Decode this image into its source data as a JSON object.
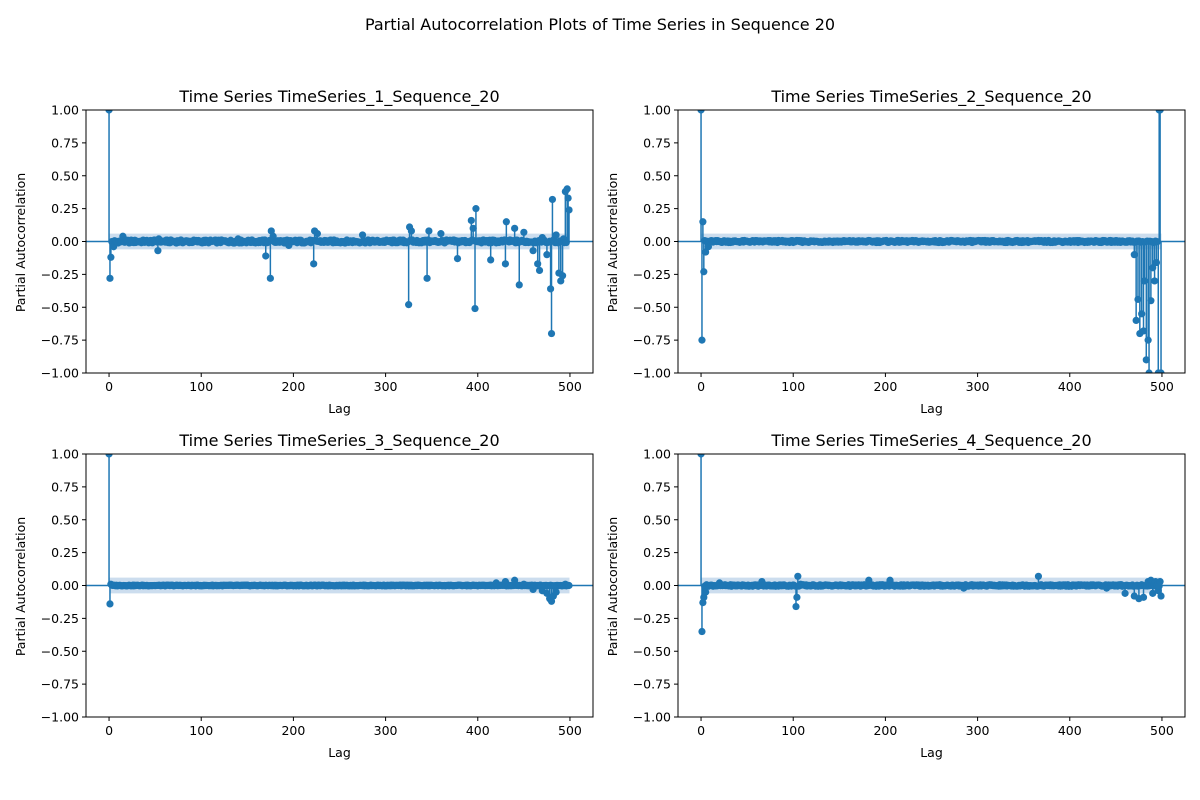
{
  "figure": {
    "title": "Partial Autocorrelation Plots of Time Series in Sequence 20"
  },
  "colors": {
    "series": "#1f77b4",
    "confidence_band": "#c6d9ec",
    "axes": "#000000"
  },
  "chart_data": [
    {
      "type": "stem",
      "title": "Time Series TimeSeries_1_Sequence_20",
      "xlabel": "Lag",
      "ylabel": "Partial Autocorrelation",
      "xlim": [
        -25,
        525
      ],
      "ylim": [
        -1.0,
        1.0
      ],
      "xticks": [
        "0",
        "100",
        "200",
        "300",
        "400",
        "500"
      ],
      "yticks": [
        "−1.00",
        "−0.75",
        "−0.50",
        "−0.25",
        "0.00",
        "0.25",
        "0.50",
        "0.75",
        "1.00"
      ],
      "confidence_band": 0.06,
      "baseline": 0,
      "background_amplitude": 0.012,
      "spikes": [
        [
          0,
          1.0
        ],
        [
          1,
          -0.28
        ],
        [
          2,
          -0.12
        ],
        [
          5,
          -0.04
        ],
        [
          15,
          0.04
        ],
        [
          53,
          -0.07
        ],
        [
          54,
          0.02
        ],
        [
          140,
          0.02
        ],
        [
          170,
          -0.11
        ],
        [
          175,
          -0.28
        ],
        [
          176,
          0.08
        ],
        [
          178,
          0.04
        ],
        [
          195,
          -0.03
        ],
        [
          222,
          -0.17
        ],
        [
          223,
          0.08
        ],
        [
          226,
          0.06
        ],
        [
          275,
          0.05
        ],
        [
          325,
          -0.48
        ],
        [
          326,
          0.11
        ],
        [
          328,
          0.08
        ],
        [
          345,
          -0.28
        ],
        [
          347,
          0.08
        ],
        [
          360,
          0.06
        ],
        [
          378,
          -0.13
        ],
        [
          393,
          0.16
        ],
        [
          395,
          0.1
        ],
        [
          397,
          -0.51
        ],
        [
          398,
          0.25
        ],
        [
          414,
          -0.14
        ],
        [
          430,
          -0.17
        ],
        [
          431,
          0.15
        ],
        [
          440,
          0.1
        ],
        [
          445,
          -0.33
        ],
        [
          450,
          0.07
        ],
        [
          460,
          -0.07
        ],
        [
          465,
          -0.17
        ],
        [
          467,
          -0.22
        ],
        [
          470,
          0.03
        ],
        [
          475,
          -0.1
        ],
        [
          479,
          -0.36
        ],
        [
          480,
          -0.7
        ],
        [
          481,
          0.32
        ],
        [
          485,
          0.05
        ],
        [
          488,
          -0.24
        ],
        [
          490,
          -0.3
        ],
        [
          492,
          -0.26
        ],
        [
          493,
          0.02
        ],
        [
          495,
          0.38
        ],
        [
          497,
          0.4
        ],
        [
          498,
          0.33
        ],
        [
          499,
          0.24
        ]
      ]
    },
    {
      "type": "stem",
      "title": "Time Series TimeSeries_2_Sequence_20",
      "xlabel": "Lag",
      "ylabel": "Partial Autocorrelation",
      "xlim": [
        -25,
        525
      ],
      "ylim": [
        -1.0,
        1.0
      ],
      "xticks": [
        "0",
        "100",
        "200",
        "300",
        "400",
        "500"
      ],
      "yticks": [
        "−1.00",
        "−0.75",
        "−0.50",
        "−0.25",
        "0.00",
        "0.25",
        "0.50",
        "0.75",
        "1.00"
      ],
      "confidence_band": 0.06,
      "baseline": 0,
      "background_amplitude": 0.008,
      "spikes": [
        [
          0,
          1.0
        ],
        [
          1,
          -0.75
        ],
        [
          2,
          0.15
        ],
        [
          3,
          -0.23
        ],
        [
          5,
          -0.08
        ],
        [
          8,
          -0.04
        ],
        [
          470,
          -0.1
        ],
        [
          472,
          -0.6
        ],
        [
          474,
          -0.44
        ],
        [
          476,
          -0.7
        ],
        [
          478,
          -0.55
        ],
        [
          480,
          -0.68
        ],
        [
          481,
          -0.3
        ],
        [
          483,
          -0.9
        ],
        [
          485,
          -0.75
        ],
        [
          486,
          -1.0
        ],
        [
          488,
          -0.45
        ],
        [
          490,
          -0.2
        ],
        [
          492,
          -0.3
        ],
        [
          494,
          -0.16
        ],
        [
          496,
          -1.0
        ],
        [
          497,
          1.0
        ],
        [
          498,
          1.0
        ],
        [
          499,
          -1.0
        ]
      ]
    },
    {
      "type": "stem",
      "title": "Time Series TimeSeries_3_Sequence_20",
      "xlabel": "Lag",
      "ylabel": "Partial Autocorrelation",
      "xlim": [
        -25,
        525
      ],
      "ylim": [
        -1.0,
        1.0
      ],
      "xticks": [
        "0",
        "100",
        "200",
        "300",
        "400",
        "500"
      ],
      "yticks": [
        "−1.00",
        "−0.75",
        "−0.50",
        "−0.25",
        "0.00",
        "0.25",
        "0.50",
        "0.75",
        "1.00"
      ],
      "confidence_band": 0.06,
      "baseline": 0,
      "background_amplitude": 0.003,
      "spikes": [
        [
          0,
          1.0
        ],
        [
          1,
          -0.14
        ],
        [
          2,
          0.01
        ],
        [
          420,
          0.02
        ],
        [
          430,
          0.03
        ],
        [
          440,
          0.04
        ],
        [
          450,
          0.01
        ],
        [
          460,
          -0.03
        ],
        [
          470,
          -0.04
        ],
        [
          475,
          -0.06
        ],
        [
          478,
          -0.1
        ],
        [
          480,
          -0.12
        ],
        [
          482,
          -0.08
        ],
        [
          485,
          -0.05
        ],
        [
          490,
          0.0
        ],
        [
          495,
          0.01
        ],
        [
          499,
          0.0
        ]
      ]
    },
    {
      "type": "stem",
      "title": "Time Series TimeSeries_4_Sequence_20",
      "xlabel": "Lag",
      "ylabel": "Partial Autocorrelation",
      "xlim": [
        -25,
        525
      ],
      "ylim": [
        -1.0,
        1.0
      ],
      "xticks": [
        "0",
        "100",
        "200",
        "300",
        "400",
        "500"
      ],
      "yticks": [
        "−1.00",
        "−0.75",
        "−0.50",
        "−0.25",
        "0.00",
        "0.25",
        "0.50",
        "0.75",
        "1.00"
      ],
      "confidence_band": 0.06,
      "baseline": 0,
      "background_amplitude": 0.006,
      "spikes": [
        [
          0,
          1.0
        ],
        [
          1,
          -0.35
        ],
        [
          2,
          -0.13
        ],
        [
          3,
          -0.09
        ],
        [
          5,
          -0.05
        ],
        [
          20,
          0.02
        ],
        [
          66,
          0.03
        ],
        [
          103,
          -0.16
        ],
        [
          104,
          -0.09
        ],
        [
          105,
          0.07
        ],
        [
          108,
          0.01
        ],
        [
          182,
          0.04
        ],
        [
          205,
          0.04
        ],
        [
          206,
          0.01
        ],
        [
          285,
          -0.02
        ],
        [
          366,
          0.07
        ],
        [
          440,
          -0.02
        ],
        [
          460,
          -0.06
        ],
        [
          470,
          -0.08
        ],
        [
          475,
          -0.1
        ],
        [
          480,
          -0.09
        ],
        [
          485,
          0.03
        ],
        [
          488,
          0.04
        ],
        [
          490,
          -0.06
        ],
        [
          493,
          0.03
        ],
        [
          496,
          -0.04
        ],
        [
          498,
          0.03
        ],
        [
          499,
          -0.08
        ]
      ]
    }
  ]
}
